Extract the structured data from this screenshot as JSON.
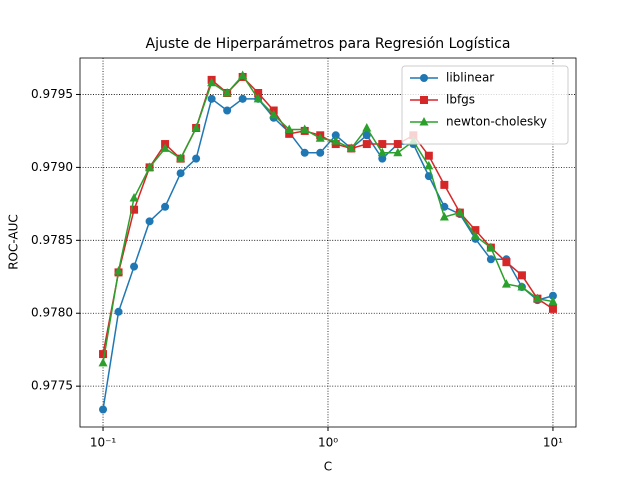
{
  "chart_data": {
    "type": "line",
    "title": "Ajuste de Hiperparámetros para Regresión Logística",
    "x_label": "C",
    "y_label": "ROC-AUC",
    "x_scale": "log",
    "grid": true,
    "legend": "upper right",
    "x": [
      0.1,
      0.11721,
      0.13738,
      0.16103,
      0.18874,
      0.22122,
      0.25929,
      0.30392,
      0.35622,
      0.41753,
      0.48939,
      0.57362,
      0.67234,
      0.78805,
      0.92367,
      1.08264,
      1.26896,
      1.48735,
      1.74333,
      2.04336,
      2.39503,
      2.80722,
      3.29034,
      3.85662,
      4.52035,
      5.29832,
      6.21017,
      7.27895,
      8.53168,
      10
    ],
    "xlim": [
      0.079,
      12.66
    ],
    "xticks": [
      {
        "value": 0.1,
        "label": "10⁻¹"
      },
      {
        "value": 1,
        "label": "10⁰"
      },
      {
        "value": 10,
        "label": "10¹"
      }
    ],
    "ylim": [
      0.97722,
      0.97975
    ],
    "yticks": [
      0.9775,
      {
        "value": 0.978,
        "label": "0.9780"
      },
      0.9785,
      {
        "value": 0.979,
        "label": "0.9790"
      },
      0.9795
    ],
    "series": [
      {
        "name": "liblinear",
        "color": "#1f77b4",
        "marker": "circle",
        "values": [
          0.97734,
          0.97801,
          0.97832,
          0.97863,
          0.97873,
          0.97896,
          0.97906,
          0.97947,
          0.97939,
          0.97947,
          0.97947,
          0.97934,
          0.97924,
          0.9791,
          0.9791,
          0.97922,
          0.97913,
          0.97922,
          0.97906,
          0.97916,
          0.97916,
          0.97894,
          0.97873,
          0.97868,
          0.97851,
          0.97837,
          0.97837,
          0.97818,
          0.97809,
          0.97812
        ]
      },
      {
        "name": "lbfgs",
        "color": "#d62728",
        "marker": "square",
        "values": [
          0.97772,
          0.97828,
          0.97871,
          0.979,
          0.97916,
          0.97906,
          0.97927,
          0.9796,
          0.97951,
          0.97962,
          0.97951,
          0.97939,
          0.97923,
          0.97925,
          0.97922,
          0.97916,
          0.97913,
          0.97916,
          0.97916,
          0.97916,
          0.97922,
          0.97908,
          0.97888,
          0.97869,
          0.97857,
          0.97845,
          0.97835,
          0.97826,
          0.9781,
          0.97803
        ]
      },
      {
        "name": "newton-cholesky",
        "color": "#2ca02c",
        "marker": "triangle",
        "values": [
          0.97766,
          0.97829,
          0.97879,
          0.979,
          0.97913,
          0.97906,
          0.97927,
          0.97958,
          0.97951,
          0.97963,
          0.97947,
          0.97936,
          0.97926,
          0.97926,
          0.9792,
          0.97918,
          0.97913,
          0.97927,
          0.9791,
          0.9791,
          0.97918,
          0.97901,
          0.97866,
          0.97869,
          0.97853,
          0.97845,
          0.9782,
          0.97818,
          0.9781,
          0.97808
        ]
      }
    ]
  }
}
